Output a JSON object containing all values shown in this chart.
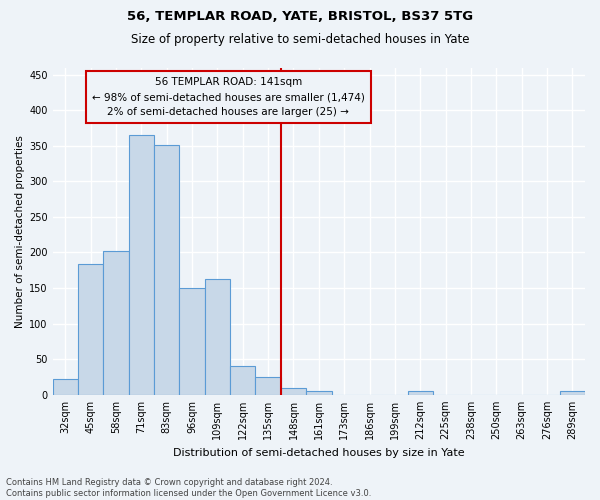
{
  "title1": "56, TEMPLAR ROAD, YATE, BRISTOL, BS37 5TG",
  "title2": "Size of property relative to semi-detached houses in Yate",
  "xlabel": "Distribution of semi-detached houses by size in Yate",
  "ylabel": "Number of semi-detached properties",
  "categories": [
    "32sqm",
    "45sqm",
    "58sqm",
    "71sqm",
    "83sqm",
    "96sqm",
    "109sqm",
    "122sqm",
    "135sqm",
    "148sqm",
    "161sqm",
    "173sqm",
    "186sqm",
    "199sqm",
    "212sqm",
    "225sqm",
    "238sqm",
    "250sqm",
    "263sqm",
    "276sqm",
    "289sqm"
  ],
  "values": [
    22,
    184,
    202,
    365,
    351,
    150,
    163,
    40,
    25,
    10,
    5,
    0,
    0,
    0,
    5,
    0,
    0,
    0,
    0,
    0,
    5
  ],
  "bar_color": "#c8d8e8",
  "bar_edge_color": "#5b9bd5",
  "annotation_line1": "56 TEMPLAR ROAD: 141sqm",
  "annotation_line2": "← 98% of semi-detached houses are smaller (1,474)",
  "annotation_line3": "2% of semi-detached houses are larger (25) →",
  "vline_color": "#cc0000",
  "box_edge_color": "#cc0000",
  "ylim": [
    0,
    460
  ],
  "yticks": [
    0,
    50,
    100,
    150,
    200,
    250,
    300,
    350,
    400,
    450
  ],
  "footer1": "Contains HM Land Registry data © Crown copyright and database right 2024.",
  "footer2": "Contains public sector information licensed under the Open Government Licence v3.0.",
  "bg_color": "#eef3f8",
  "grid_color": "#ffffff",
  "title1_fontsize": 9.5,
  "title2_fontsize": 8.5,
  "ylabel_fontsize": 7.5,
  "xlabel_fontsize": 8,
  "tick_fontsize": 7,
  "annot_fontsize": 7.5,
  "footer_fontsize": 6
}
